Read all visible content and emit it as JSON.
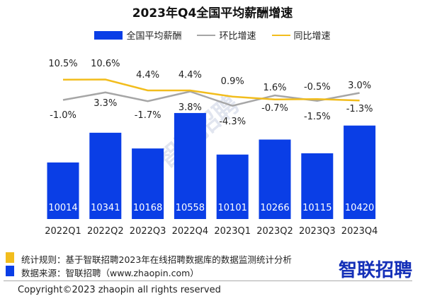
{
  "chart_data": {
    "type": "bar+line",
    "title": "2023年Q4全国平均薪酬增速",
    "categories": [
      "2022Q1",
      "2022Q2",
      "2022Q3",
      "2022Q4",
      "2023Q1",
      "2023Q2",
      "2023Q3",
      "2023Q4"
    ],
    "series": [
      {
        "name": "全国平均薪酬",
        "type": "bar",
        "color": "#0a3ee6",
        "values": [
          10014,
          10341,
          10168,
          10558,
          10101,
          10266,
          10115,
          10420
        ]
      },
      {
        "name": "环比增速",
        "type": "line",
        "color": "#a6a6a6",
        "values": [
          -1.0,
          3.3,
          -1.7,
          3.8,
          -4.3,
          1.6,
          -1.5,
          3.0
        ]
      },
      {
        "name": "同比增速",
        "type": "line",
        "color": "#f2bd1d",
        "values": [
          10.5,
          10.6,
          4.4,
          4.4,
          0.9,
          -0.7,
          -0.5,
          -1.3
        ]
      }
    ],
    "legend": "top",
    "grid": false
  },
  "footer": {
    "rule": "统计规则：基于智联招聘2023年在线招聘数据库的数据监测统计分析",
    "source": "数据来源：智联招聘（www.zhaopin.com）",
    "rule_color": "#f2bd1d",
    "source_color": "#0a3ee6",
    "logo": "智联招聘",
    "copyright": "Copyright©2023 zhaopin all rights reserved"
  },
  "watermark": "智联招聘"
}
